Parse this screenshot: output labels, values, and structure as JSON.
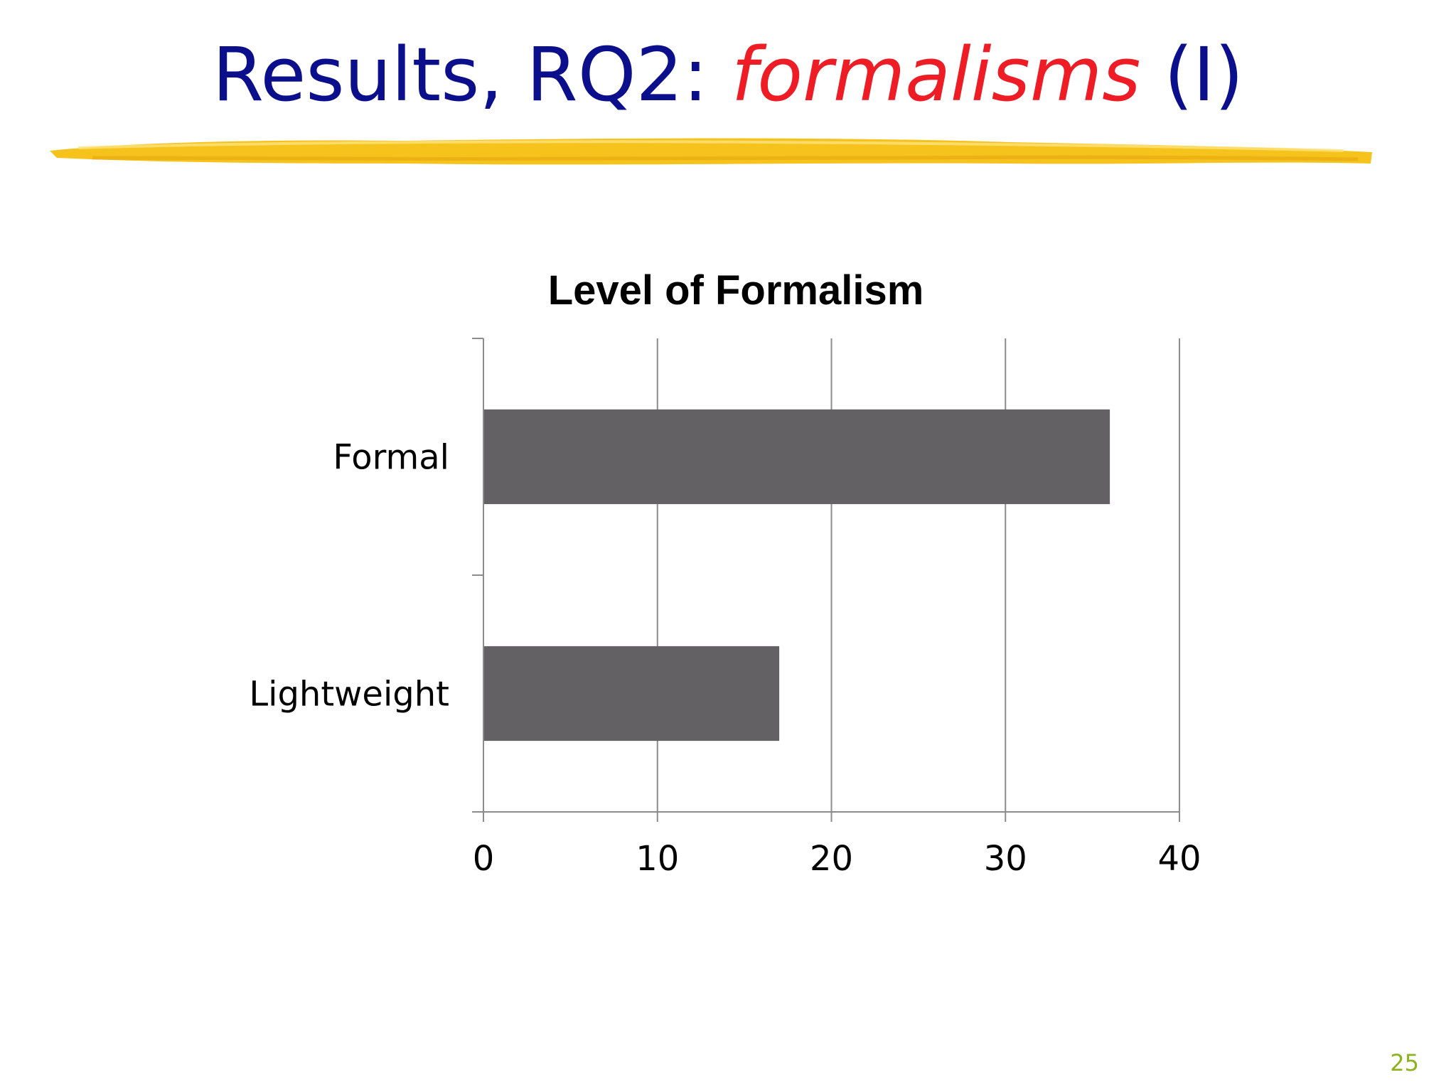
{
  "slide": {
    "title_prefix": "Results, RQ2: ",
    "title_emphasis": "formalisms",
    "title_suffix": " (I)",
    "page_number": "25"
  },
  "colors": {
    "title": "#0b0f8c",
    "emphasis": "#ee1c25",
    "underline": "#f6c21c",
    "bar": "#636164",
    "grid": "#8c8c8c",
    "page_number": "#8cb21e"
  },
  "chart_data": {
    "type": "bar",
    "orientation": "horizontal",
    "title": "Level of Formalism",
    "categories": [
      "Formal",
      "Lightweight"
    ],
    "values": [
      36,
      17
    ],
    "xlabel": "",
    "ylabel": "",
    "xlim": [
      0,
      40
    ],
    "xticks": [
      "0",
      "10",
      "20",
      "30",
      "40"
    ],
    "grid": "vertical",
    "legend": "none"
  }
}
